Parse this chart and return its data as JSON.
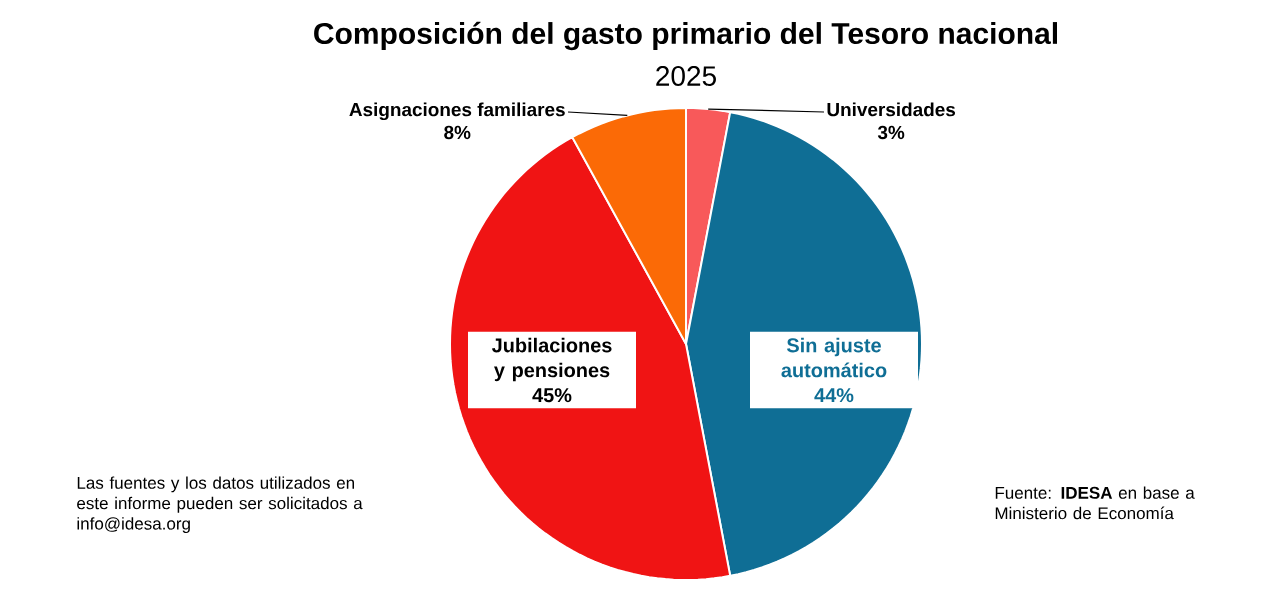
{
  "chart_data": {
    "type": "pie",
    "title": "Composición del gasto primario del Tesoro nacional",
    "subtitle": "2025",
    "categories": [
      "Universidades",
      "Sin ajuste automático",
      "Jubilaciones y pensiones",
      "Asignaciones familiares"
    ],
    "values": [
      3,
      44,
      45,
      8
    ],
    "value_labels": [
      "3%",
      "44%",
      "45%",
      "8%"
    ],
    "colors": [
      "#f8595a",
      "#0f6e95",
      "#f01414",
      "#fb6a06"
    ],
    "legend": false,
    "annotations": [
      "Las fuentes y los datos utilizados en este informe pueden ser solicitados a info@idesa.org",
      "Fuente: **IDESA** en base a Ministerio de Economía"
    ]
  }
}
